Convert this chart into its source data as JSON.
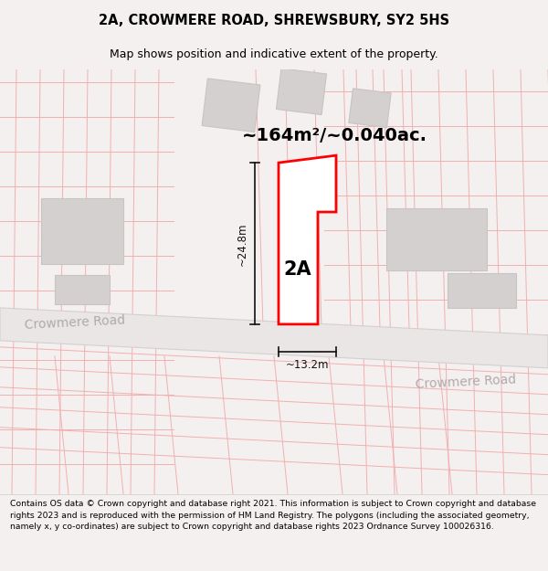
{
  "title": "2A, CROWMERE ROAD, SHREWSBURY, SY2 5HS",
  "subtitle": "Map shows position and indicative extent of the property.",
  "area_label": "~164m²/~0.040ac.",
  "property_label": "2A",
  "dim_height": "~24.8m",
  "dim_width": "~13.2m",
  "road_label_left": "Crowmere Road",
  "road_label_right": "Crowmere Road",
  "footer": "Contains OS data © Crown copyright and database right 2021. This information is subject to Crown copyright and database rights 2023 and is reproduced with the permission of HM Land Registry. The polygons (including the associated geometry, namely x, y co-ordinates) are subject to Crown copyright and database rights 2023 Ordnance Survey 100026316.",
  "bg_color": "#f5f0f0",
  "map_bg": "#f5f0f0",
  "property_fill": "#ffffff",
  "property_edge": "#ff0000",
  "property_lw": 2.0,
  "grid_line_color": "#f0b0b0",
  "building_fill": "#d4d0d0",
  "building_edge": "#c8c4c4",
  "road_fill": "#eae6e6",
  "road_edge": "#d4d0d0",
  "dim_color": "#111111",
  "road_text_color": "#b0aaaa",
  "title_bg": "#ffffff",
  "footer_bg": "#ffffff",
  "title_fontsize": 10.5,
  "subtitle_fontsize": 9.0,
  "area_fontsize": 14,
  "label_fontsize": 15,
  "dim_fontsize": 8.5,
  "road_fontsize": 10,
  "footer_fontsize": 6.7
}
